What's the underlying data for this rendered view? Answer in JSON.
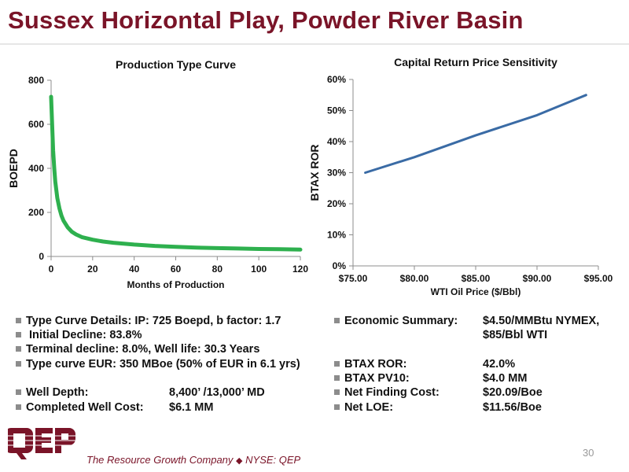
{
  "page": {
    "title": "Sussex Horizontal Play, Powder River Basin",
    "company": "The Resource Growth Company",
    "ticker": "NYSE: QEP",
    "logo_text": "QEP",
    "page_number": "30",
    "brand_color": "#7a1428"
  },
  "chart_data": [
    {
      "type": "line",
      "title": "Production Type Curve",
      "xlabel": "Months of Production",
      "ylabel": "BOEPD",
      "xlim": [
        0,
        120
      ],
      "ylim": [
        0,
        800
      ],
      "xticks": [
        "0",
        "20",
        "40",
        "60",
        "80",
        "100",
        "120"
      ],
      "yticks": [
        "0",
        "200",
        "400",
        "600",
        "800"
      ],
      "grid": false,
      "series": [
        {
          "color": "#2eb04e",
          "x": [
            0,
            0.5,
            1,
            1.5,
            2,
            3,
            4,
            5,
            6,
            8,
            10,
            12,
            15,
            20,
            25,
            30,
            40,
            50,
            60,
            70,
            80,
            90,
            100,
            110,
            120
          ],
          "values": [
            725,
            600,
            480,
            400,
            340,
            265,
            218,
            185,
            162,
            132,
            112,
            100,
            87,
            76,
            68,
            62,
            54,
            48,
            44,
            40,
            38,
            36,
            34,
            33,
            31
          ]
        }
      ]
    },
    {
      "type": "line",
      "title": "Capital Return Price Sensitivity",
      "xlabel": "WTI Oil Price ($/Bbl)",
      "ylabel": "BTAX ROR",
      "xlim": [
        75,
        95
      ],
      "ylim": [
        0,
        60
      ],
      "xticks": [
        "$75.00",
        "$80.00",
        "$85.00",
        "$90.00",
        "$95.00"
      ],
      "yticks": [
        "0%",
        "10%",
        "20%",
        "30%",
        "40%",
        "50%",
        "60%"
      ],
      "grid": false,
      "series": [
        {
          "color": "#3a6ba5",
          "x": [
            76,
            80,
            85,
            90,
            94
          ],
          "values": [
            30,
            35,
            42,
            48.5,
            55
          ]
        }
      ]
    }
  ],
  "left_details": {
    "line1": "Type Curve Details: IP:  725 Boepd, b factor: 1.7",
    "line2": " Initial Decline:  83.8%",
    "line3": "Terminal decline:  8.0%, Well life:  30.3 Years",
    "line4": "Type curve EUR:  350 MBoe (50% of EUR in 6.1 yrs)",
    "depth_label": "Well Depth:",
    "depth_value": "8,400’ /13,000’ MD",
    "cost_label": "Completed Well Cost:",
    "cost_value": "$6.1 MM"
  },
  "right_details": {
    "econ_label": "Economic Summary:",
    "econ_value1": "$4.50/MMBtu NYMEX,",
    "econ_value2": "$85/Bbl WTI",
    "ror_label": "BTAX ROR:",
    "ror_value": "42.0%",
    "pv_label": "BTAX PV10:",
    "pv_value": "$4.0 MM",
    "nfc_label": "Net Finding Cost:",
    "nfc_value": "$20.09/Boe",
    "loe_label": "Net LOE:",
    "loe_value": "$11.56/Boe"
  }
}
